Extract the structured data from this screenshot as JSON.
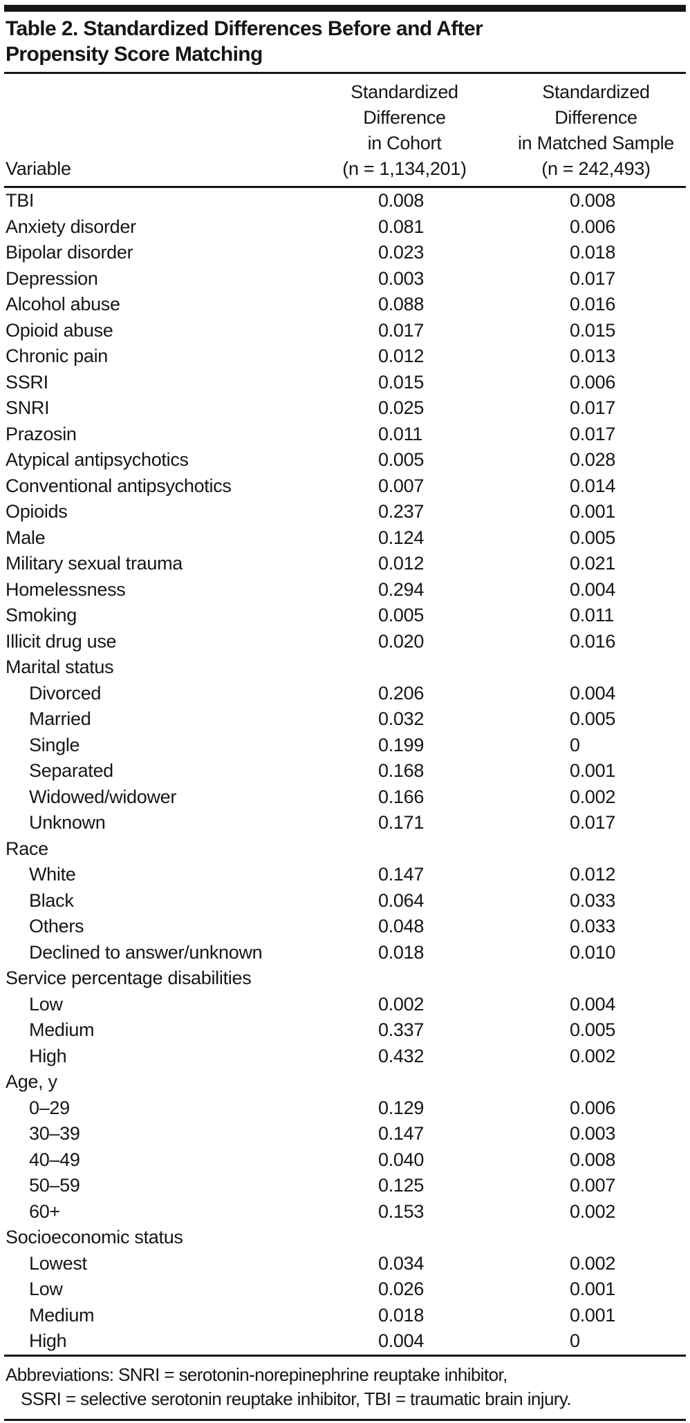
{
  "title_lines": [
    "Table 2. Standardized Differences Before and After",
    "Propensity Score Matching"
  ],
  "table": {
    "header": {
      "variable": "Variable",
      "cohort_lines": [
        "Standardized",
        "Difference",
        "in Cohort",
        "(n = 1,134,201)"
      ],
      "matched_lines": [
        "Standardized",
        "Difference",
        "in Matched Sample",
        "(n = 242,493)"
      ]
    },
    "rows": [
      {
        "label": "TBI",
        "cohort": "0.008",
        "matched": "0.008",
        "indent": false,
        "group": false
      },
      {
        "label": "Anxiety disorder",
        "cohort": "0.081",
        "matched": "0.006",
        "indent": false,
        "group": false
      },
      {
        "label": "Bipolar disorder",
        "cohort": "0.023",
        "matched": "0.018",
        "indent": false,
        "group": false
      },
      {
        "label": "Depression",
        "cohort": "0.003",
        "matched": "0.017",
        "indent": false,
        "group": false
      },
      {
        "label": "Alcohol abuse",
        "cohort": "0.088",
        "matched": "0.016",
        "indent": false,
        "group": false
      },
      {
        "label": "Opioid abuse",
        "cohort": "0.017",
        "matched": "0.015",
        "indent": false,
        "group": false
      },
      {
        "label": "Chronic pain",
        "cohort": "0.012",
        "matched": "0.013",
        "indent": false,
        "group": false
      },
      {
        "label": "SSRI",
        "cohort": "0.015",
        "matched": "0.006",
        "indent": false,
        "group": false
      },
      {
        "label": "SNRI",
        "cohort": "0.025",
        "matched": "0.017",
        "indent": false,
        "group": false
      },
      {
        "label": "Prazosin",
        "cohort": "0.011",
        "matched": "0.017",
        "indent": false,
        "group": false
      },
      {
        "label": "Atypical antipsychotics",
        "cohort": "0.005",
        "matched": "0.028",
        "indent": false,
        "group": false
      },
      {
        "label": "Conventional antipsychotics",
        "cohort": "0.007",
        "matched": "0.014",
        "indent": false,
        "group": false
      },
      {
        "label": "Opioids",
        "cohort": "0.237",
        "matched": "0.001",
        "indent": false,
        "group": false
      },
      {
        "label": "Male",
        "cohort": "0.124",
        "matched": "0.005",
        "indent": false,
        "group": false
      },
      {
        "label": "Military sexual trauma",
        "cohort": "0.012",
        "matched": "0.021",
        "indent": false,
        "group": false
      },
      {
        "label": "Homelessness",
        "cohort": "0.294",
        "matched": "0.004",
        "indent": false,
        "group": false
      },
      {
        "label": "Smoking",
        "cohort": "0.005",
        "matched": "0.011",
        "indent": false,
        "group": false
      },
      {
        "label": "Illicit drug use",
        "cohort": "0.020",
        "matched": "0.016",
        "indent": false,
        "group": false
      },
      {
        "label": "Marital status",
        "cohort": "",
        "matched": "",
        "indent": false,
        "group": true
      },
      {
        "label": "Divorced",
        "cohort": "0.206",
        "matched": "0.004",
        "indent": true,
        "group": false
      },
      {
        "label": "Married",
        "cohort": "0.032",
        "matched": "0.005",
        "indent": true,
        "group": false
      },
      {
        "label": "Single",
        "cohort": "0.199",
        "matched": "0",
        "indent": true,
        "group": false
      },
      {
        "label": "Separated",
        "cohort": "0.168",
        "matched": "0.001",
        "indent": true,
        "group": false
      },
      {
        "label": "Widowed/widower",
        "cohort": "0.166",
        "matched": "0.002",
        "indent": true,
        "group": false
      },
      {
        "label": "Unknown",
        "cohort": "0.171",
        "matched": "0.017",
        "indent": true,
        "group": false
      },
      {
        "label": "Race",
        "cohort": "",
        "matched": "",
        "indent": false,
        "group": true
      },
      {
        "label": "White",
        "cohort": "0.147",
        "matched": "0.012",
        "indent": true,
        "group": false
      },
      {
        "label": "Black",
        "cohort": "0.064",
        "matched": "0.033",
        "indent": true,
        "group": false
      },
      {
        "label": "Others",
        "cohort": "0.048",
        "matched": "0.033",
        "indent": true,
        "group": false
      },
      {
        "label": "Declined to answer/unknown",
        "cohort": "0.018",
        "matched": "0.010",
        "indent": true,
        "group": false
      },
      {
        "label": "Service percentage disabilities",
        "cohort": "",
        "matched": "",
        "indent": false,
        "group": true
      },
      {
        "label": "Low",
        "cohort": "0.002",
        "matched": "0.004",
        "indent": true,
        "group": false
      },
      {
        "label": "Medium",
        "cohort": "0.337",
        "matched": "0.005",
        "indent": true,
        "group": false
      },
      {
        "label": "High",
        "cohort": "0.432",
        "matched": "0.002",
        "indent": true,
        "group": false
      },
      {
        "label": "Age, y",
        "cohort": "",
        "matched": "",
        "indent": false,
        "group": true
      },
      {
        "label": "0–29",
        "cohort": "0.129",
        "matched": "0.006",
        "indent": true,
        "group": false
      },
      {
        "label": "30–39",
        "cohort": "0.147",
        "matched": "0.003",
        "indent": true,
        "group": false
      },
      {
        "label": "40–49",
        "cohort": "0.040",
        "matched": "0.008",
        "indent": true,
        "group": false
      },
      {
        "label": "50–59",
        "cohort": "0.125",
        "matched": "0.007",
        "indent": true,
        "group": false
      },
      {
        "label": "60+",
        "cohort": "0.153",
        "matched": "0.002",
        "indent": true,
        "group": false
      },
      {
        "label": "Socioeconomic status",
        "cohort": "",
        "matched": "",
        "indent": false,
        "group": true
      },
      {
        "label": "Lowest",
        "cohort": "0.034",
        "matched": "0.002",
        "indent": true,
        "group": false
      },
      {
        "label": "Low",
        "cohort": "0.026",
        "matched": "0.001",
        "indent": true,
        "group": false
      },
      {
        "label": "Medium",
        "cohort": "0.018",
        "matched": "0.001",
        "indent": true,
        "group": false
      },
      {
        "label": "High",
        "cohort": "0.004",
        "matched": "0",
        "indent": true,
        "group": false
      }
    ]
  },
  "footer": {
    "lines": [
      "Abbreviations: SNRI = serotonin-norepinephrine reuptake inhibitor,",
      "SSRI = selective serotonin reuptake inhibitor, TBI = traumatic brain injury."
    ]
  },
  "colors": {
    "text": "#161616",
    "rule": "#161616",
    "background": "#ffffff"
  }
}
